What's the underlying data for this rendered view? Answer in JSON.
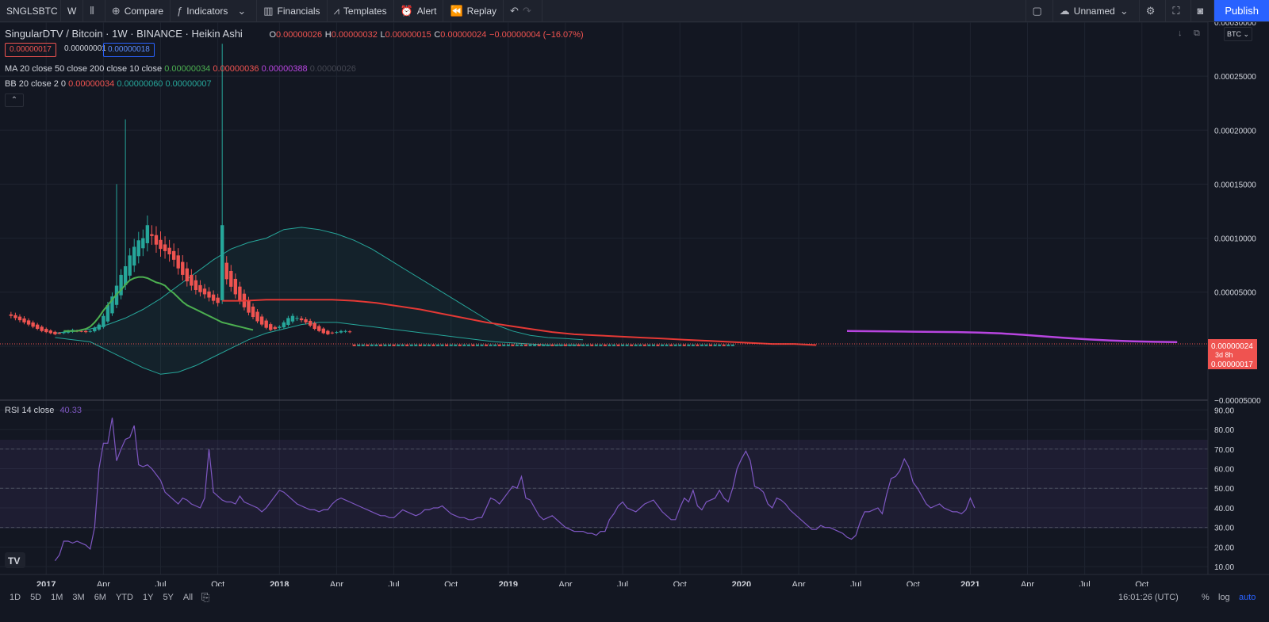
{
  "toolbar": {
    "symbol": "SNGLSBTC",
    "interval": "W",
    "compare": "Compare",
    "indicators": "Indicators",
    "financials": "Financials",
    "templates": "Templates",
    "alert": "Alert",
    "replay": "Replay",
    "layout_name": "Unnamed",
    "publish": "Publish"
  },
  "legend": {
    "symbol_title": "SingularDTV / Bitcoin · 1W · BINANCE · Heikin Ashi",
    "o_label": "O",
    "o": "0.00000026",
    "h_label": "H",
    "h": "0.00000032",
    "l_label": "L",
    "l": "0.00000015",
    "c_label": "C",
    "c": "0.00000024",
    "change": "−0.00000004 (−16.07%)",
    "bid": "0.00000017",
    "spread": "0.00000001",
    "ask": "0.00000018",
    "ma_title": "MA 20 close 50 close 200 close 10 close",
    "ma_vals": [
      "0.00000034",
      "0.00000036",
      "0.00000388",
      "0.00000026"
    ],
    "bb_title": "BB 20 close 2 0",
    "bb_vals": [
      "0.00000034",
      "0.00000060",
      "0.00000007"
    ],
    "rsi_title": "RSI 14 close",
    "rsi_val": "40.33"
  },
  "price_axis": {
    "currency": "BTC",
    "last_price": "0.00000024",
    "countdown": "3d 8h",
    "bid_label": "0.00000017"
  },
  "colors": {
    "up": "#26a69a",
    "down": "#ef5350",
    "ma20": "#4caf50",
    "ma50": "#e53935",
    "ma200": "#b845e0",
    "rsi": "#7e57c2",
    "bb": "#26a69a"
  },
  "chart_data": [
    {
      "type": "candlestick",
      "title": "SingularDTV / Bitcoin",
      "y_ticks": [
        0.0003,
        0.00025,
        0.0002,
        0.00015,
        0.0001,
        5e-05,
        0,
        -5e-05
      ],
      "y_tick_labels": [
        "0.00030000",
        "0.00025000",
        "0.00020000",
        "0.00015000",
        "0.00010000",
        "0.00005000",
        "0.00000024",
        "−0.00005000"
      ],
      "ylim": [
        -5e-05,
        0.0003
      ],
      "x_ticks": [
        "2017",
        "Apr",
        "Jul",
        "Oct",
        "2018",
        "Apr",
        "Jul",
        "Oct",
        "2019",
        "Apr",
        "Jul",
        "Oct",
        "2020",
        "Apr",
        "Jul",
        "Oct",
        "2021",
        "Apr",
        "Jul",
        "Oct"
      ],
      "x_tick_idx": [
        8,
        21,
        34,
        47,
        61,
        74,
        87,
        100,
        113,
        126,
        139,
        152,
        166,
        179,
        192,
        205,
        218,
        231,
        244,
        257
      ],
      "x_range": [
        -2.5,
        272
      ],
      "close": [
        2.8e-05,
        2.6e-05,
        2.4e-05,
        2.2e-05,
        2e-05,
        1.8e-05,
        1.6e-05,
        1.4e-05,
        1.3e-05,
        1.2e-05,
        1.1e-05,
        1.2e-05,
        1.3e-05,
        1.4e-05,
        1.5e-05,
        1.4e-05,
        1.4e-05,
        1.3e-05,
        1.4e-05,
        1.7e-05,
        2e-05,
        2.8e-05,
        3.8e-05,
        4.6e-05,
        5.6e-05,
        6.6e-05,
        7.4e-05,
        8.4e-05,
        9.2e-05,
        9.8e-05,
        0.0001,
        0.000112,
        0.000102,
        9.4e-05,
        9e-05,
        8.8e-05,
        8.5e-05,
        8e-05,
        7.2e-05,
        6.6e-05,
        6e-05,
        5.6e-05,
        5.2e-05,
        5e-05,
        4.8e-05,
        4.5e-05,
        4.2e-05,
        4e-05,
        0.000112,
        6.2e-05,
        5.5e-05,
        4.8e-05,
        4.2e-05,
        3.6e-05,
        3.1e-05,
        2.7e-05,
        2.3e-05,
        2e-05,
        1.7e-05,
        1.5e-05,
        1.6e-05,
        1.8e-05,
        2.2e-05,
        2.6e-05,
        2.8e-05,
        2.6e-05,
        2.4e-05,
        2.2e-05,
        1.9e-05,
        1.6e-05,
        1.4e-05,
        1.2e-05,
        1.1e-05,
        1.2e-05,
        1.3e-05,
        1.4e-05,
        1.4e-05,
        1.3e-05
      ],
      "ma20": [
        1.4e-05,
        1.4e-05,
        1.4e-05,
        1.4e-05,
        1.5e-05,
        1.6e-05,
        1.8e-05,
        2.2e-05,
        2.7e-05,
        3.3e-05,
        3.8e-05,
        4.3e-05,
        4.8e-05,
        5.2e-05,
        5.7e-05,
        6.1e-05,
        6.3e-05,
        6.4e-05,
        6.4e-05,
        6.3e-05,
        6.1e-05,
        5.9e-05,
        5.8e-05,
        5.6e-05,
        5.2e-05,
        4.9e-05,
        4.5e-05,
        4.1e-05,
        3.8e-05,
        3.6e-05,
        3.4e-05,
        3.2e-05,
        3e-05,
        2.8e-05,
        2.6e-05,
        2.4e-05,
        2.2e-05,
        2.1e-05,
        2e-05,
        1.9e-05,
        1.8e-05,
        1.7e-05,
        1.6e-05,
        1.5e-05
      ],
      "ma50": [
        4.2e-05,
        4.2e-05,
        4.3e-05,
        4.3e-05,
        4.3e-05,
        4.3e-05,
        4.2e-05,
        4e-05,
        3.7e-05,
        3.4e-05,
        3e-05,
        2.6e-05,
        2.2e-05,
        1.9e-05,
        1.6e-05,
        1.3e-05,
        1.1e-05,
        1e-05,
        9e-06,
        8e-06,
        7e-06,
        6e-06,
        5e-06,
        4e-06,
        3e-06,
        2e-06,
        2e-06,
        1e-06
      ],
      "ma200": [
        1.4e-05,
        1.38e-05,
        1.36e-05,
        1.34e-05,
        1.32e-05,
        1.3e-05,
        1.26e-05,
        1.18e-05,
        1.05e-05,
        9e-06,
        7.5e-06,
        6.2e-06,
        5.2e-06,
        4.5e-06,
        4e-06,
        3.8e-06
      ]
    },
    {
      "type": "line",
      "title": "RSI 14 close",
      "y_ticks": [
        90,
        80,
        70,
        60,
        50,
        40,
        30,
        20,
        10
      ],
      "y_tick_labels": [
        "90.00",
        "80.00",
        "70.00",
        "60.00",
        "50.00",
        "40.00",
        "30.00",
        "20.00",
        "10.00"
      ],
      "ylim": [
        6,
        95
      ],
      "bands": [
        30,
        50,
        70
      ],
      "x_start": 10,
      "values": [
        13,
        16,
        23,
        23,
        22,
        23,
        22,
        21,
        19,
        30,
        60,
        73,
        73,
        86,
        64,
        70,
        75,
        76,
        82,
        62,
        61,
        62,
        60,
        57,
        54,
        48,
        46,
        44,
        42,
        45,
        44,
        42,
        41,
        40,
        45,
        70,
        48,
        46,
        44,
        43,
        43,
        42,
        46,
        43,
        42,
        41,
        40,
        38,
        40,
        43,
        46,
        49,
        48,
        46,
        44,
        42,
        41,
        40,
        39,
        39,
        38,
        39,
        39,
        42,
        44,
        45,
        44,
        43,
        42,
        41,
        40,
        39,
        38,
        37,
        36,
        36,
        35,
        35,
        37,
        39,
        38,
        37,
        36,
        37,
        39,
        39,
        40,
        40,
        41,
        39,
        37,
        36,
        35,
        35,
        34,
        34,
        35,
        35,
        40,
        45,
        44,
        42,
        45,
        48,
        51,
        50,
        56,
        45,
        44,
        40,
        36,
        34,
        35,
        36,
        34,
        32,
        30,
        29,
        28,
        28,
        28,
        27,
        27,
        26,
        28,
        28,
        34,
        37,
        41,
        43,
        40,
        39,
        38,
        40,
        42,
        43,
        44,
        41,
        38,
        36,
        34,
        34,
        40,
        45,
        43,
        49,
        41,
        39,
        43,
        44,
        45,
        49,
        45,
        43,
        50,
        60,
        65,
        69,
        64,
        51,
        50,
        48,
        42,
        40,
        45,
        44,
        42,
        39,
        37,
        35,
        33,
        31,
        29,
        29,
        31,
        30,
        30,
        29,
        28,
        27,
        25,
        24,
        26,
        33,
        38,
        38,
        39,
        40,
        37,
        47,
        55,
        56,
        59,
        65,
        61,
        53,
        50,
        46,
        42,
        40,
        41,
        42,
        40,
        39,
        38,
        38,
        37,
        39,
        45,
        40
      ]
    }
  ],
  "time_axis": {
    "clock": "16:01:26 (UTC)",
    "ranges": [
      "1D",
      "5D",
      "1M",
      "3M",
      "6M",
      "YTD",
      "1Y",
      "5Y",
      "All"
    ],
    "percent": "%",
    "log": "log",
    "auto": "auto"
  }
}
